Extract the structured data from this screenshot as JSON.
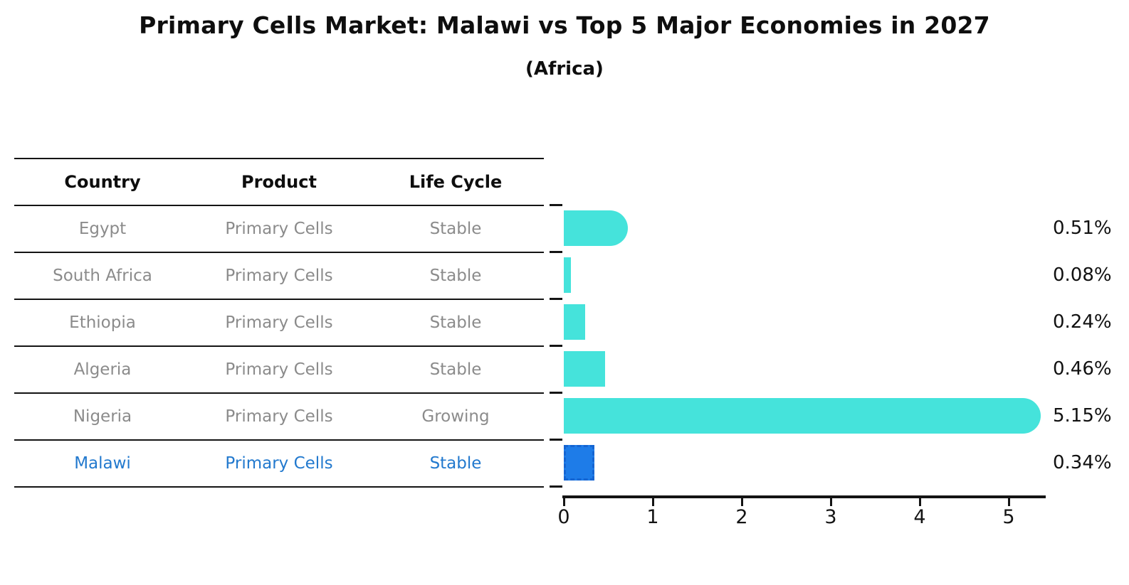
{
  "title": "Primary Cells Market: Malawi vs Top 5 Major Economies in 2027",
  "subtitle": "(Africa)",
  "table": {
    "columns": [
      "Country",
      "Product",
      "Life Cycle"
    ],
    "rows": [
      {
        "country": "Egypt",
        "product": "Primary Cells",
        "life_cycle": "Stable"
      },
      {
        "country": "South Africa",
        "product": "Primary Cells",
        "life_cycle": "Stable"
      },
      {
        "country": "Ethiopia",
        "product": "Primary Cells",
        "life_cycle": "Stable"
      },
      {
        "country": "Algeria",
        "product": "Primary Cells",
        "life_cycle": "Stable"
      },
      {
        "country": "Nigeria",
        "product": "Primary Cells",
        "life_cycle": "Growing"
      },
      {
        "country": "Malawi",
        "product": "Primary Cells",
        "life_cycle": "Stable"
      }
    ],
    "highlighted_country": "Malawi"
  },
  "chart_data": {
    "type": "bar",
    "orientation": "horizontal",
    "categories": [
      "Egypt",
      "South Africa",
      "Ethiopia",
      "Algeria",
      "Nigeria",
      "Malawi"
    ],
    "values": [
      0.51,
      0.08,
      0.24,
      0.46,
      5.15,
      0.34
    ],
    "value_labels": [
      "0.51%",
      "0.08%",
      "0.24%",
      "0.46%",
      "5.15%",
      "0.34%"
    ],
    "x_ticks": [
      "0",
      "1",
      "2",
      "3",
      "4",
      "5"
    ],
    "xlim": [
      0,
      5.4
    ],
    "grid": false,
    "legend": "none",
    "highlight_index": 5,
    "rounded_cap_min_value": 0.5,
    "bar_color": "#45E3DB",
    "highlight_bar_color": "#1E7CE8",
    "highlight_bar_border": "#1565D2"
  },
  "colors": {
    "header_text": "#0E0E0E",
    "body_text": "#8B8B8B",
    "highlight_text": "#2279CE",
    "line": "#141414"
  }
}
